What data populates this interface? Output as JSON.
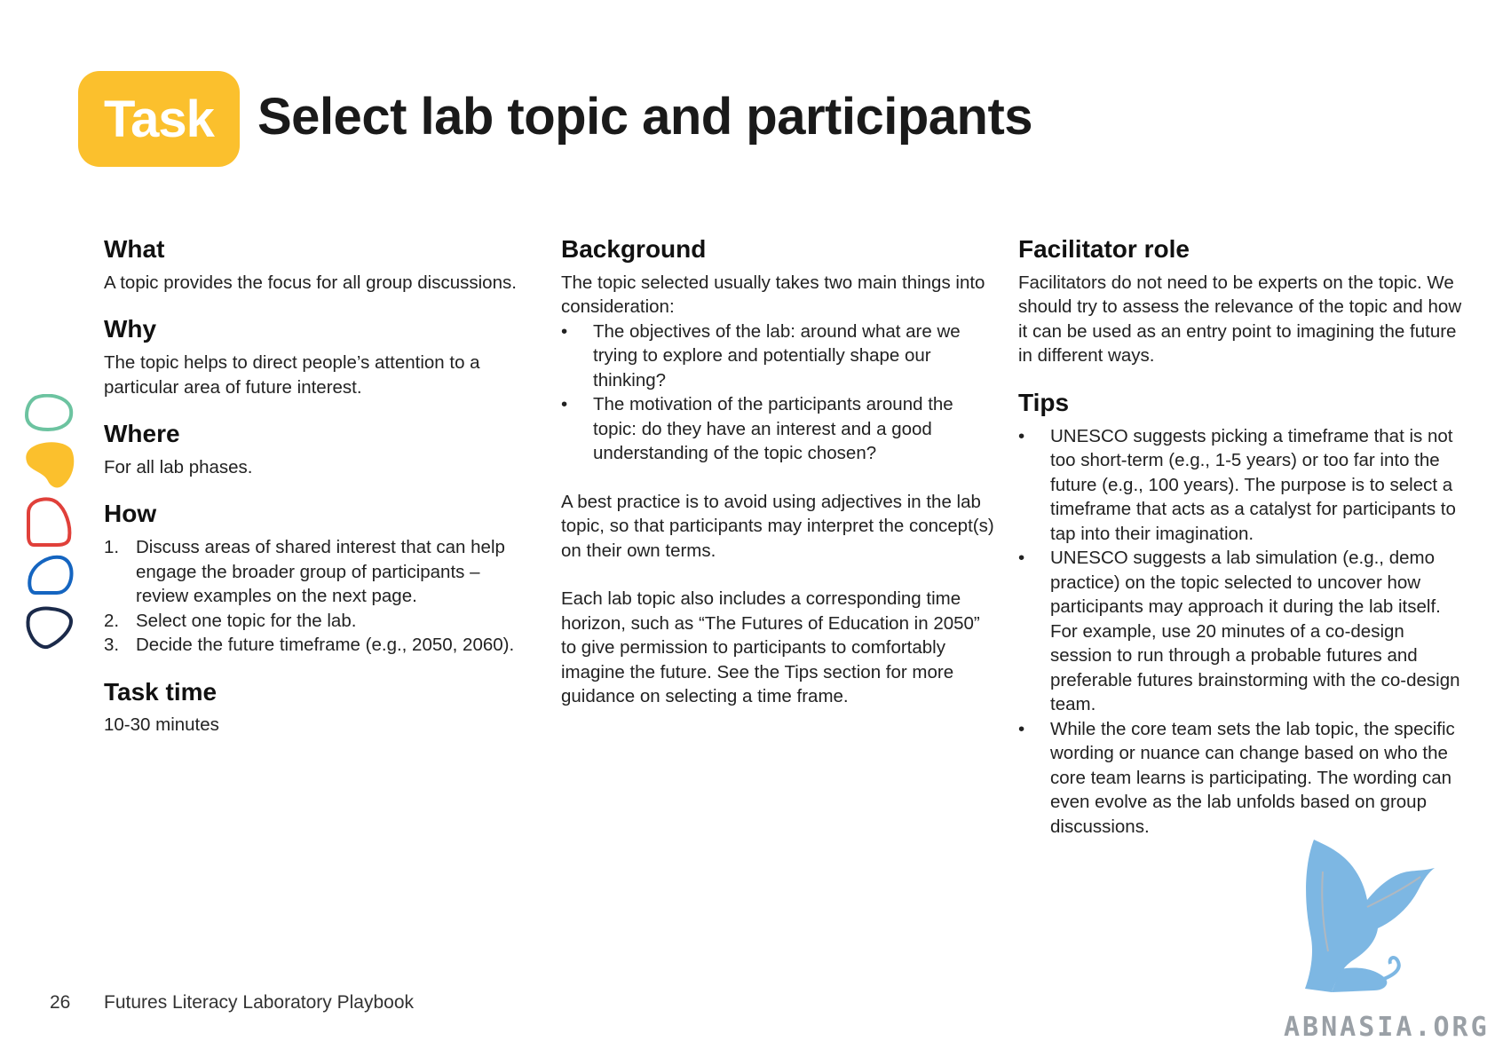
{
  "header": {
    "badge": "Task",
    "title": "Select lab topic and participants"
  },
  "col1": {
    "what_h": "What",
    "what_p": "A topic provides the focus for all group discussions.",
    "why_h": "Why",
    "why_p": "The topic helps to direct people’s attention to a particular area of future interest.",
    "where_h": "Where",
    "where_p": "For all lab phases.",
    "how_h": "How",
    "how_items": [
      {
        "num": "1.",
        "text": "Discuss areas of shared interest that can help engage the broader group of participants – review examples on the next page."
      },
      {
        "num": "2.",
        "text": "Select one topic for the lab."
      },
      {
        "num": "3.",
        "text": "Decide the future timeframe (e.g., 2050, 2060)."
      }
    ],
    "time_h": "Task time",
    "time_p": "10-30 minutes"
  },
  "col2": {
    "bg_h": "Background",
    "bg_p1": "The topic selected usually takes two main things into consideration:",
    "bg_items": [
      "The objectives of the lab: around what are we trying to explore and potentially shape our thinking?",
      "The motivation of the participants around the topic: do they have an interest and a good understanding of the topic chosen?"
    ],
    "bg_p2": "A best practice is to avoid using adjectives in the lab topic, so that participants may interpret the concept(s) on their own terms.",
    "bg_p3": "Each lab topic also includes a corresponding time horizon, such as “The Futures of Education in 2050” to give permission to participants to comfortably imagine the future. See the Tips section for more guidance on selecting a time frame."
  },
  "col3": {
    "fac_h": "Facilitator role",
    "fac_p": "Facilitators do not need to be experts on the topic. We should try to assess the relevance of the topic and how it can be used as an entry point to imagining the future in different ways.",
    "tips_h": "Tips",
    "tips_items": [
      "UNESCO suggests picking a timeframe that is not too short-term (e.g., 1-5 years) or too far into the future (e.g., 100 years). The purpose is to select a timeframe that acts as a catalyst for participants to tap into their imagination.",
      "UNESCO suggests a lab simulation (e.g., demo practice) on the topic selected to uncover how participants may approach it during the lab itself. For example, use 20 minutes of a co-design session to run through a probable futures and preferable futures brainstorming with the co-design team.",
      "While the core team sets the lab topic, the specific wording or nuance can change based on who the core team learns is participating. The wording can even evolve as the lab unfolds based on group discussions."
    ]
  },
  "bullet": "•",
  "footer": {
    "page": "26",
    "doc": "Futures Literacy Laboratory Playbook"
  },
  "watermark": "ABNASIA.ORG",
  "colors": {
    "badge": "#fbc02d",
    "shape_green": "#6cc3a0",
    "shape_yellow": "#fbc02d",
    "shape_red": "#e0403a",
    "shape_blue": "#1565c0",
    "shape_navy": "#1b2a4a",
    "logo_blue": "#7db7e3"
  }
}
